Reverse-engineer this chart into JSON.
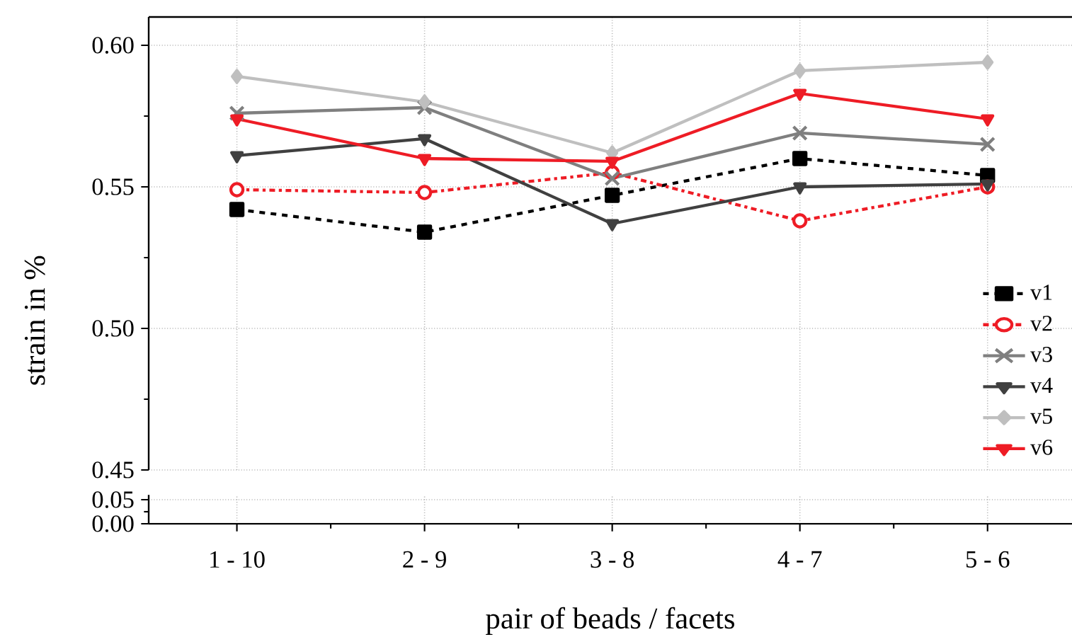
{
  "chart_data": [
    {
      "type": "line",
      "ylabel": "strain in %",
      "categories": [
        null,
        null,
        null,
        null,
        null
      ],
      "ylim": [
        0.45,
        0.61
      ],
      "yticks": [
        0.45,
        {
          "value": 0.5,
          "label": "0.50"
        },
        0.55,
        {
          "value": 0.6,
          "label": "0.60"
        }
      ],
      "grid": true,
      "legend": "bottom right",
      "tick_labels": "y",
      "series": [
        {
          "name": "v1",
          "color": "#000000",
          "marker": "square",
          "line_style": "dashed",
          "values": [
            0.542,
            0.534,
            0.547,
            0.56,
            0.554
          ]
        },
        {
          "name": "v2",
          "color": "#ee1c25",
          "marker": "circle",
          "line_style": "dashdotted",
          "values": [
            0.549,
            0.548,
            0.555,
            0.538,
            0.55
          ]
        },
        {
          "name": "v3",
          "color": "#7f7f7f",
          "marker": "cross",
          "line_style": "solid",
          "values": [
            0.576,
            0.578,
            0.553,
            0.569,
            0.565
          ]
        },
        {
          "name": "v4",
          "color": "#404040",
          "marker": "triangle",
          "line_style": "solid",
          "values": [
            0.561,
            0.567,
            0.537,
            0.55,
            0.551
          ]
        },
        {
          "name": "v5",
          "color": "#bfbfbf",
          "marker": "diamond",
          "line_style": "solid",
          "values": [
            0.589,
            0.58,
            0.562,
            0.591,
            0.594
          ]
        },
        {
          "name": "v6",
          "color": "#ee1c25",
          "marker": "triangle",
          "line_style": "solid",
          "values": [
            0.574,
            0.56,
            0.559,
            0.583,
            0.574
          ]
        }
      ]
    },
    {
      "type": "line",
      "xlabel": "pair of beads / facets",
      "categories": [
        "1 - 10",
        "2 - 9",
        "3 - 8",
        "4 - 7",
        "5 - 6"
      ],
      "ylim": [
        0,
        0.06
      ],
      "yticks": [
        {
          "value": 0,
          "label": "0.00"
        },
        0.05
      ],
      "grid": true
    }
  ]
}
